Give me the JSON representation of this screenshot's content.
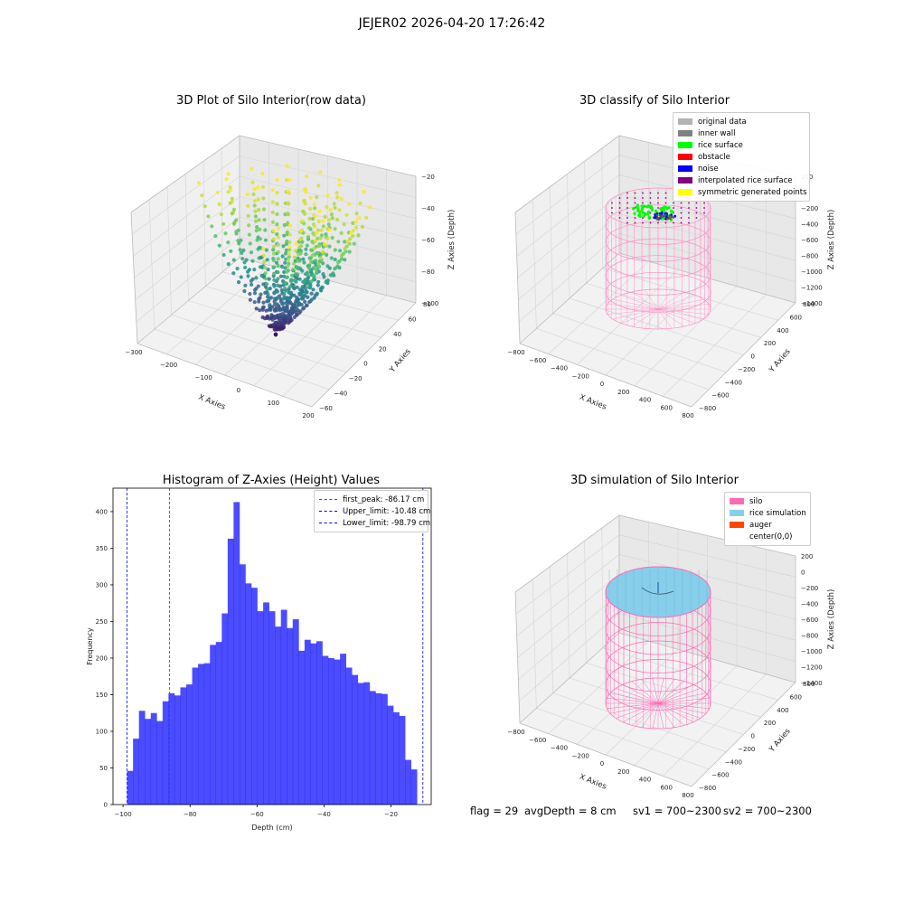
{
  "figure": {
    "suptitle": "JEJER02 2026-04-20 17:26:42"
  },
  "panels": {
    "raw": {
      "title": "3D Plot of Silo Interior(row data)",
      "xlabel": "X Axies",
      "ylabel": "Y Axies",
      "zlabel": "Z Axies (Depth)",
      "x_ticks": [
        "−300",
        "−200",
        "−100",
        "0",
        "100",
        "200"
      ],
      "y_ticks": [
        "−60",
        "−40",
        "−20",
        "0",
        "20",
        "40",
        "60",
        "80"
      ],
      "z_ticks": [
        "−20",
        "−40",
        "−60",
        "−80",
        "−100"
      ]
    },
    "classify": {
      "title": "3D classify of Silo Interior",
      "xlabel": "X Axies",
      "ylabel": "Y Axies",
      "zlabel": "Z Axies (Depth)",
      "x_ticks": [
        "−800",
        "−600",
        "−400",
        "−200",
        "0",
        "200",
        "400",
        "600",
        "800"
      ],
      "y_ticks": [
        "−800",
        "−600",
        "−400",
        "−200",
        "0",
        "200",
        "400",
        "600",
        "800"
      ],
      "z_ticks": [
        "200",
        "0",
        "−200",
        "−400",
        "−600",
        "−800",
        "−1000",
        "−1200",
        "−1400"
      ],
      "legend": [
        {
          "label": "original data",
          "color": "#b3b3b3"
        },
        {
          "label": "inner wall",
          "color": "#808080"
        },
        {
          "label": "rice surface",
          "color": "#00ff00"
        },
        {
          "label": "obstacle",
          "color": "#ff0000"
        },
        {
          "label": "noise",
          "color": "#0000ff"
        },
        {
          "label": "interpolated rice surface",
          "color": "#800080"
        },
        {
          "label": "symmetric generated points",
          "color": "#ffff00"
        }
      ]
    },
    "simulation": {
      "title": "3D simulation of Silo Interior",
      "xlabel": "X Axies",
      "ylabel": "Y Axies",
      "zlabel": "Z Axies (Depth)",
      "x_ticks": [
        "−800",
        "−600",
        "−400",
        "−200",
        "0",
        "200",
        "400",
        "600",
        "800"
      ],
      "y_ticks": [
        "−800",
        "−600",
        "−400",
        "−200",
        "0",
        "200",
        "400",
        "600",
        "800"
      ],
      "z_ticks": [
        "200",
        "0",
        "−200",
        "−400",
        "−600",
        "−800",
        "−1000",
        "−1200",
        "−1400"
      ],
      "legend": [
        {
          "label": "silo",
          "color": "#ff69b4"
        },
        {
          "label": "rice simulation",
          "color": "#87ceeb"
        },
        {
          "label": "auger",
          "color": "#ff4500"
        },
        {
          "label": "center(0,0)",
          "color": ""
        }
      ]
    }
  },
  "footer": {
    "flag": "flag = 29",
    "avg_depth": "avgDepth = 8 cm",
    "sv1": "sv1 = 700~2300",
    "sv2": "sv2 = 700~2300"
  },
  "chart_data": [
    {
      "type": "scatter",
      "title": "3D Plot of Silo Interior(row data)",
      "xlabel": "X Axies",
      "ylabel": "Y Axies",
      "zlabel": "Z Axies (Depth)",
      "xlim": [
        -300,
        200
      ],
      "ylim": [
        -60,
        80
      ],
      "zlim": [
        -100,
        -10
      ],
      "colormap": "viridis"
    },
    {
      "type": "scatter",
      "title": "3D classify of Silo Interior",
      "xlabel": "X Axies",
      "ylabel": "Y Axies",
      "zlabel": "Z Axies (Depth)",
      "xlim": [
        -800,
        800
      ],
      "ylim": [
        -800,
        800
      ],
      "zlim": [
        -1450,
        200
      ],
      "legend_placement": "top-right"
    },
    {
      "type": "bar",
      "title": "Histogram of Z-Axies (Height) Values",
      "xlabel": "Depth (cm)",
      "ylabel": "Frequency",
      "xlim": [
        -103,
        -8
      ],
      "ylim": [
        0,
        432
      ],
      "x_ticks": [
        -100,
        -80,
        -60,
        -40,
        -20
      ],
      "y_ticks": [
        0,
        50,
        100,
        150,
        200,
        250,
        300,
        350,
        400
      ],
      "x_tick_labels": [
        "−100",
        "−80",
        "−60",
        "−40",
        "−20"
      ],
      "y_tick_labels": [
        "0",
        "50",
        "100",
        "150",
        "200",
        "250",
        "300",
        "350",
        "400"
      ],
      "bin_start": -98.79,
      "bin_width": 1.766,
      "color": "#0000ff",
      "values": [
        46,
        90,
        128,
        117,
        125,
        114,
        141,
        152,
        149,
        160,
        164,
        187,
        192,
        193,
        218,
        222,
        261,
        363,
        413,
        328,
        302,
        296,
        264,
        276,
        264,
        243,
        266,
        241,
        253,
        210,
        225,
        220,
        223,
        203,
        200,
        198,
        206,
        187,
        177,
        166,
        167,
        155,
        152,
        151,
        135,
        126,
        121,
        61,
        48
      ],
      "vlines": [
        {
          "label": "first_peak: -86.17 cm",
          "x": -86.17,
          "color": "#ff0000"
        },
        {
          "label": "Upper_limit: -10.48 cm",
          "x": -10.48,
          "color": "#0000ff"
        },
        {
          "label": "Lower_limit: -98.79 cm",
          "x": -98.79,
          "color": "#0000ff"
        }
      ],
      "legend_placement": "top-right"
    },
    {
      "type": "scatter",
      "title": "3D simulation of Silo Interior",
      "xlabel": "X Axies",
      "ylabel": "Y Axies",
      "zlabel": "Z Axies (Depth)",
      "xlim": [
        -800,
        800
      ],
      "ylim": [
        -800,
        800
      ],
      "zlim": [
        -1450,
        200
      ],
      "legend_placement": "top-right"
    }
  ]
}
